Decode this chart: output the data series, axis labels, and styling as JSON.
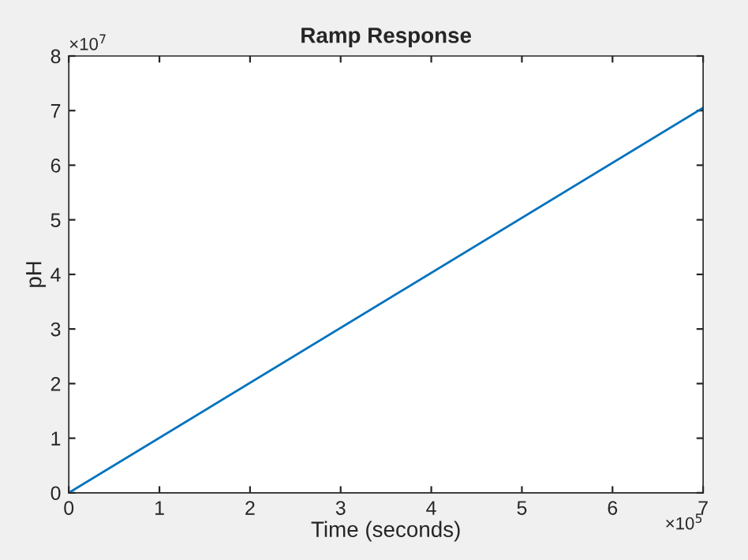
{
  "chart_data": {
    "type": "line",
    "title": "Ramp Response",
    "xlabel": "Time (seconds)",
    "ylabel": "pH",
    "x": [
      0,
      7
    ],
    "series": [
      {
        "color": "#0072bd",
        "values": [
          0,
          7.05
        ]
      }
    ],
    "xlim": [
      0,
      7
    ],
    "ylim": [
      0,
      8
    ],
    "xticks": [
      0,
      1,
      2,
      3,
      4,
      5,
      6,
      7
    ],
    "yticks": [
      0,
      1,
      2,
      3,
      4,
      5,
      6,
      7,
      8
    ],
    "annotations": [
      "×10$^{7}$",
      "×10$^{5}$"
    ],
    "grid": false,
    "legend": false,
    "line_style": "solid"
  }
}
